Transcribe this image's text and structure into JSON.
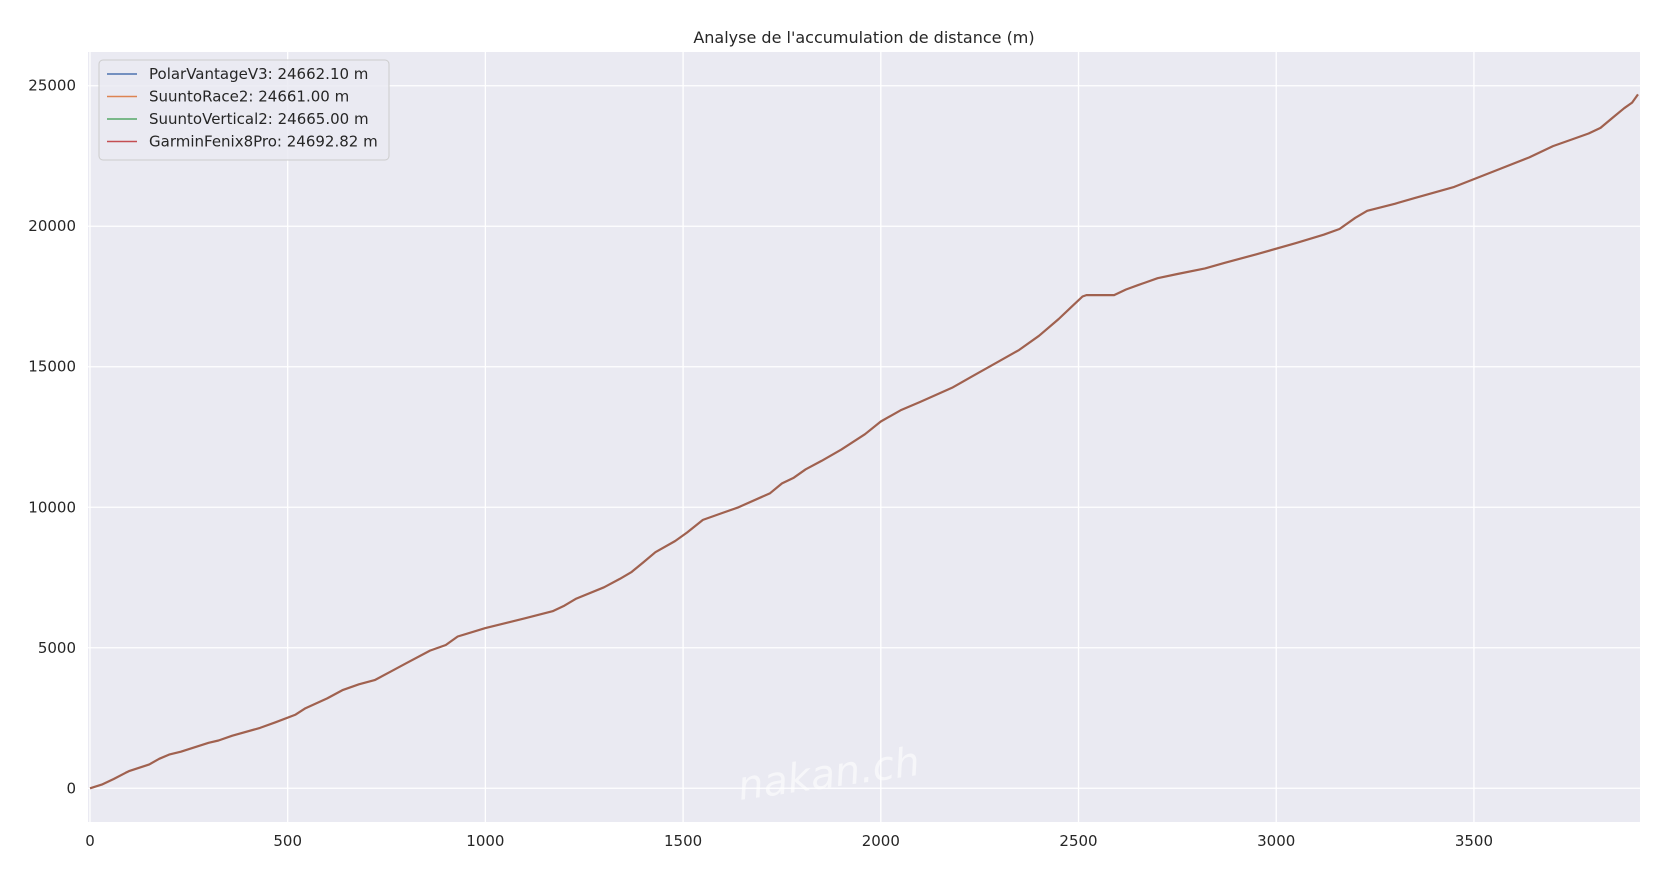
{
  "chart_data": {
    "type": "line",
    "title": "Analyse de l'accumulation de distance (m)",
    "xlabel": "",
    "ylabel": "",
    "xlim": [
      -5,
      3920
    ],
    "ylim": [
      -1200,
      26200
    ],
    "x_ticks": [
      0,
      500,
      1000,
      1500,
      2000,
      2500,
      3000,
      3500
    ],
    "y_ticks": [
      0,
      5000,
      10000,
      15000,
      20000,
      25000
    ],
    "grid": true,
    "legend_position": "top-left",
    "background": "#eaeaf2",
    "watermark": "nakan.ch",
    "series": [
      {
        "name": "PolarVantageV3: 24662.10 m",
        "color": "#4c72b0",
        "values": []
      },
      {
        "name": "SuuntoRace2: 24661.00 m",
        "color": "#dd8452",
        "values": []
      },
      {
        "name": "SuuntoVertical2: 24665.00 m",
        "color": "#55a868",
        "values": []
      },
      {
        "name": "GarminFenix8Pro: 24692.82 m",
        "color": "#c44e52",
        "line_color": "#a0614f",
        "x": [
          0,
          30,
          60,
          90,
          100,
          150,
          175,
          200,
          230,
          300,
          325,
          360,
          430,
          470,
          520,
          545,
          600,
          640,
          680,
          720,
          760,
          800,
          860,
          900,
          930,
          1000,
          1100,
          1170,
          1200,
          1230,
          1300,
          1340,
          1370,
          1400,
          1430,
          1480,
          1510,
          1550,
          1600,
          1640,
          1720,
          1750,
          1780,
          1810,
          1850,
          1900,
          1960,
          2000,
          2050,
          2100,
          2180,
          2230,
          2300,
          2350,
          2400,
          2450,
          2480,
          2510,
          2520,
          2590,
          2620,
          2650,
          2700,
          2750,
          2820,
          2870,
          2950,
          3050,
          3120,
          3160,
          3200,
          3230,
          3300,
          3350,
          3450,
          3550,
          3640,
          3700,
          3750,
          3790,
          3820,
          3850,
          3880,
          3900,
          3915
        ],
        "y": [
          0,
          130,
          330,
          550,
          620,
          850,
          1050,
          1200,
          1300,
          1620,
          1700,
          1870,
          2150,
          2350,
          2620,
          2850,
          3200,
          3500,
          3700,
          3850,
          4150,
          4450,
          4900,
          5100,
          5400,
          5700,
          6050,
          6300,
          6500,
          6750,
          7150,
          7450,
          7700,
          8050,
          8400,
          8800,
          9100,
          9550,
          9800,
          10000,
          10500,
          10850,
          11050,
          11350,
          11650,
          12050,
          12600,
          13050,
          13450,
          13750,
          14250,
          14650,
          15200,
          15600,
          16100,
          16700,
          17100,
          17500,
          17550,
          17550,
          17750,
          17900,
          18150,
          18300,
          18500,
          18700,
          19000,
          19400,
          19700,
          19900,
          20300,
          20550,
          20800,
          21000,
          21400,
          21950,
          22450,
          22850,
          23100,
          23300,
          23500,
          23850,
          24200,
          24400,
          24692.82
        ]
      }
    ]
  }
}
